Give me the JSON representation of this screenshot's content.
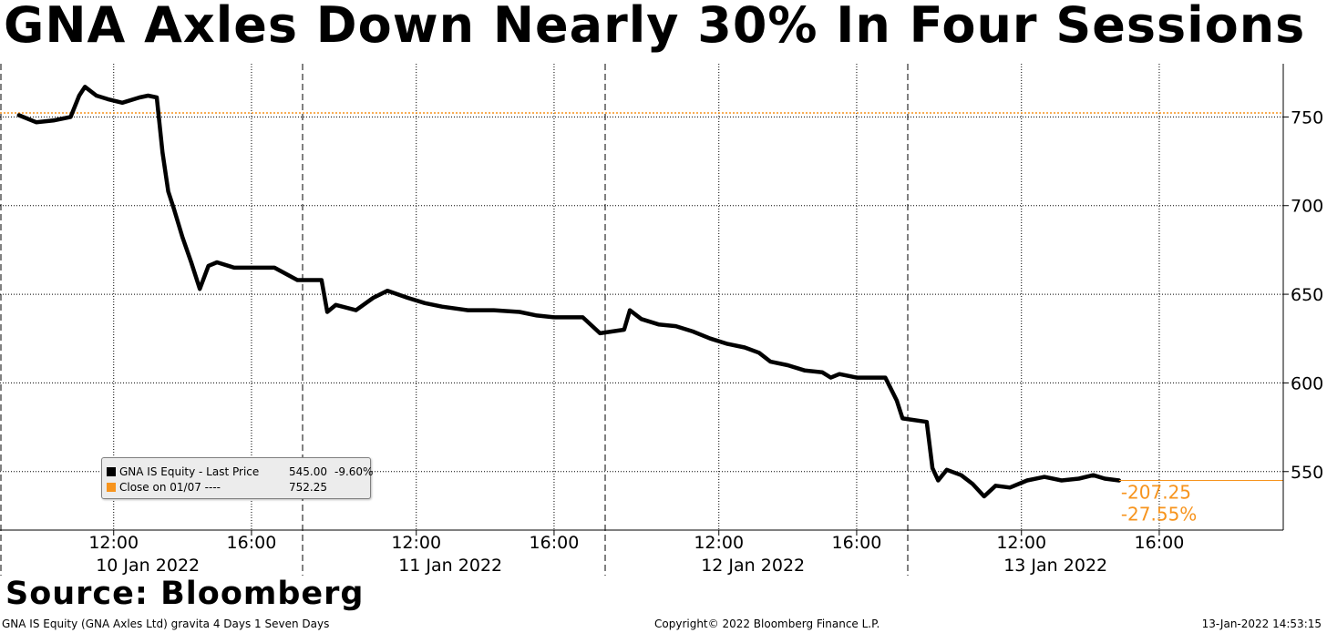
{
  "title": "GNA Axles Down Nearly 30% In Four Sessions",
  "source": "Source: Bloomberg",
  "footer": {
    "left": "GNA IS Equity (GNA Axles Ltd) gravita 4 Days 1 Seven Days",
    "center": "Copyright© 2022 Bloomberg Finance L.P.",
    "right": "13-Jan-2022 14:53:15"
  },
  "legend": {
    "items": [
      {
        "label": "GNA IS Equity - Last Price",
        "value": "545.00",
        "pct": "-9.60%",
        "color": "#000000"
      },
      {
        "label": "Close on 01/07 ----",
        "value": "752.25",
        "pct": "",
        "color": "#f7941d"
      }
    ]
  },
  "annotations": {
    "change": "-207.25",
    "change_pct": "-27.55%",
    "color": "#f7941d"
  },
  "chart_data": {
    "type": "line",
    "title": "GNA Axles Down Nearly 30% In Four Sessions",
    "xlabel": "",
    "ylabel": "",
    "ylim": [
      517,
      780
    ],
    "yticks": [
      550,
      600,
      650,
      700,
      750
    ],
    "grid": true,
    "y_axis_side": "right",
    "x_tick_labels": [
      "12:00",
      "16:00",
      "12:00",
      "16:00",
      "12:00",
      "16:00",
      "12:00",
      "16:00"
    ],
    "day_labels": [
      "10 Jan 2022",
      "11 Jan 2022",
      "12 Jan 2022",
      "13 Jan 2022"
    ],
    "reference_line": {
      "name": "Close on 01/07",
      "value": 752.25,
      "color": "#f7941d"
    },
    "series": [
      {
        "name": "GNA IS Equity - Last Price",
        "color": "#000000",
        "points": [
          [
            "10 Jan 09:15",
            751
          ],
          [
            "10 Jan 09:45",
            747
          ],
          [
            "10 Jan 10:15",
            748
          ],
          [
            "10 Jan 10:45",
            750
          ],
          [
            "10 Jan 11:00",
            762
          ],
          [
            "10 Jan 11:10",
            767
          ],
          [
            "10 Jan 11:30",
            762
          ],
          [
            "10 Jan 11:50",
            760
          ],
          [
            "10 Jan 12:15",
            758
          ],
          [
            "10 Jan 12:45",
            761
          ],
          [
            "10 Jan 13:00",
            762
          ],
          [
            "10 Jan 13:15",
            761
          ],
          [
            "10 Jan 13:25",
            730
          ],
          [
            "10 Jan 13:35",
            708
          ],
          [
            "10 Jan 13:45",
            698
          ],
          [
            "10 Jan 14:00",
            682
          ],
          [
            "10 Jan 14:15",
            668
          ],
          [
            "10 Jan 14:30",
            653
          ],
          [
            "10 Jan 14:45",
            666
          ],
          [
            "10 Jan 15:00",
            668
          ],
          [
            "10 Jan 15:30",
            665
          ],
          [
            "10 Jan 16:00",
            665
          ],
          [
            "10 Jan 16:40",
            665
          ],
          [
            "10 Jan 17:20",
            658
          ],
          [
            "11 Jan 09:15",
            658
          ],
          [
            "11 Jan 09:25",
            640
          ],
          [
            "11 Jan 09:40",
            644
          ],
          [
            "11 Jan 10:15",
            641
          ],
          [
            "11 Jan 10:45",
            648
          ],
          [
            "11 Jan 11:10",
            652
          ],
          [
            "11 Jan 11:45",
            648
          ],
          [
            "11 Jan 12:15",
            645
          ],
          [
            "11 Jan 12:45",
            643
          ],
          [
            "11 Jan 13:30",
            641
          ],
          [
            "11 Jan 14:15",
            641
          ],
          [
            "11 Jan 15:00",
            640
          ],
          [
            "11 Jan 15:30",
            638
          ],
          [
            "11 Jan 16:00",
            637
          ],
          [
            "11 Jan 16:50",
            637
          ],
          [
            "11 Jan 17:20",
            628
          ],
          [
            "12 Jan 09:15",
            630
          ],
          [
            "12 Jan 09:25",
            641
          ],
          [
            "12 Jan 09:45",
            636
          ],
          [
            "12 Jan 10:15",
            633
          ],
          [
            "12 Jan 10:45",
            632
          ],
          [
            "12 Jan 11:15",
            629
          ],
          [
            "12 Jan 11:45",
            625
          ],
          [
            "12 Jan 12:15",
            622
          ],
          [
            "12 Jan 12:45",
            620
          ],
          [
            "12 Jan 13:10",
            617
          ],
          [
            "12 Jan 13:30",
            612
          ],
          [
            "12 Jan 14:00",
            610
          ],
          [
            "12 Jan 14:30",
            607
          ],
          [
            "12 Jan 15:00",
            606
          ],
          [
            "12 Jan 15:15",
            603
          ],
          [
            "12 Jan 15:30",
            605
          ],
          [
            "12 Jan 16:00",
            603
          ],
          [
            "12 Jan 16:50",
            603
          ],
          [
            "12 Jan 17:10",
            590
          ],
          [
            "12 Jan 17:20",
            580
          ],
          [
            "13 Jan 09:15",
            578
          ],
          [
            "13 Jan 09:25",
            552
          ],
          [
            "13 Jan 09:35",
            545
          ],
          [
            "13 Jan 09:50",
            551
          ],
          [
            "13 Jan 10:15",
            548
          ],
          [
            "13 Jan 10:35",
            543
          ],
          [
            "13 Jan 10:55",
            536
          ],
          [
            "13 Jan 11:15",
            542
          ],
          [
            "13 Jan 11:40",
            541
          ],
          [
            "13 Jan 12:10",
            545
          ],
          [
            "13 Jan 12:40",
            547
          ],
          [
            "13 Jan 13:10",
            545
          ],
          [
            "13 Jan 13:40",
            546
          ],
          [
            "13 Jan 14:05",
            548
          ],
          [
            "13 Jan 14:25",
            546
          ],
          [
            "13 Jan 14:50",
            545
          ]
        ]
      }
    ]
  }
}
